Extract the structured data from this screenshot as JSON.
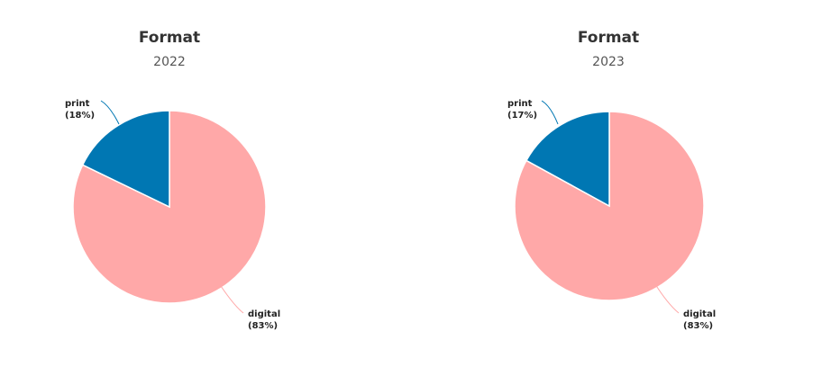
{
  "chart_data": [
    {
      "type": "pie",
      "title": "Format",
      "subtitle": "2022",
      "slices": [
        {
          "name": "digital",
          "value": 83,
          "label_pct": "(83%)",
          "color": "#ffa8a8"
        },
        {
          "name": "print",
          "value": 18,
          "label_pct": "(18%)",
          "color": "#0077b3"
        }
      ]
    },
    {
      "type": "pie",
      "title": "Format",
      "subtitle": "2023",
      "slices": [
        {
          "name": "digital",
          "value": 83,
          "label_pct": "(83%)",
          "color": "#ffa8a8"
        },
        {
          "name": "print",
          "value": 17,
          "label_pct": "(17%)",
          "color": "#0077b3"
        }
      ]
    }
  ]
}
